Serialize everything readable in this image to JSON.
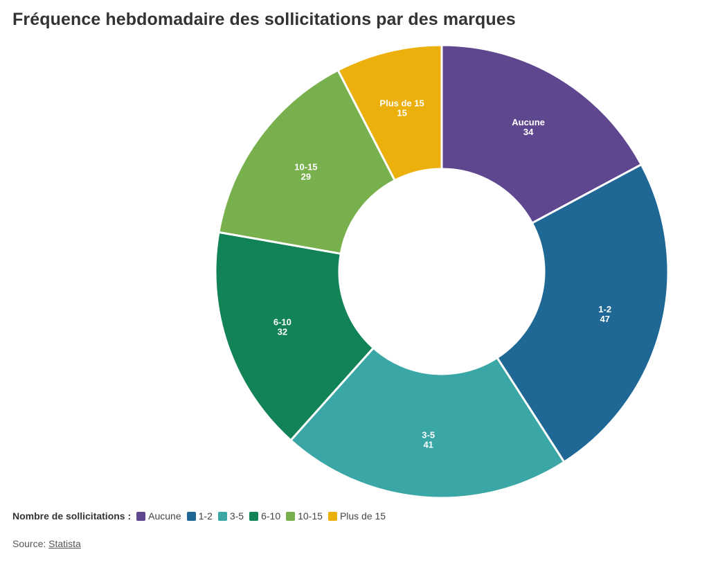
{
  "chart_data": {
    "type": "pie",
    "variant": "donut",
    "title": "Fréquence hebdomadaire des sollicitations par des marques",
    "categories": [
      "Aucune",
      "1-2",
      "3-5",
      "6-10",
      "10-15",
      "Plus de 15"
    ],
    "values": [
      34,
      47,
      41,
      32,
      29,
      15
    ],
    "colors": [
      "#5f478f",
      "#1f6896",
      "#3aa6a6",
      "#128356",
      "#77b04c",
      "#ebb00c"
    ],
    "legend": {
      "title": "Nombre de sollicitations :",
      "placement": "bottom-left"
    }
  },
  "source": {
    "label": "Source:",
    "link_text": "Statista"
  }
}
